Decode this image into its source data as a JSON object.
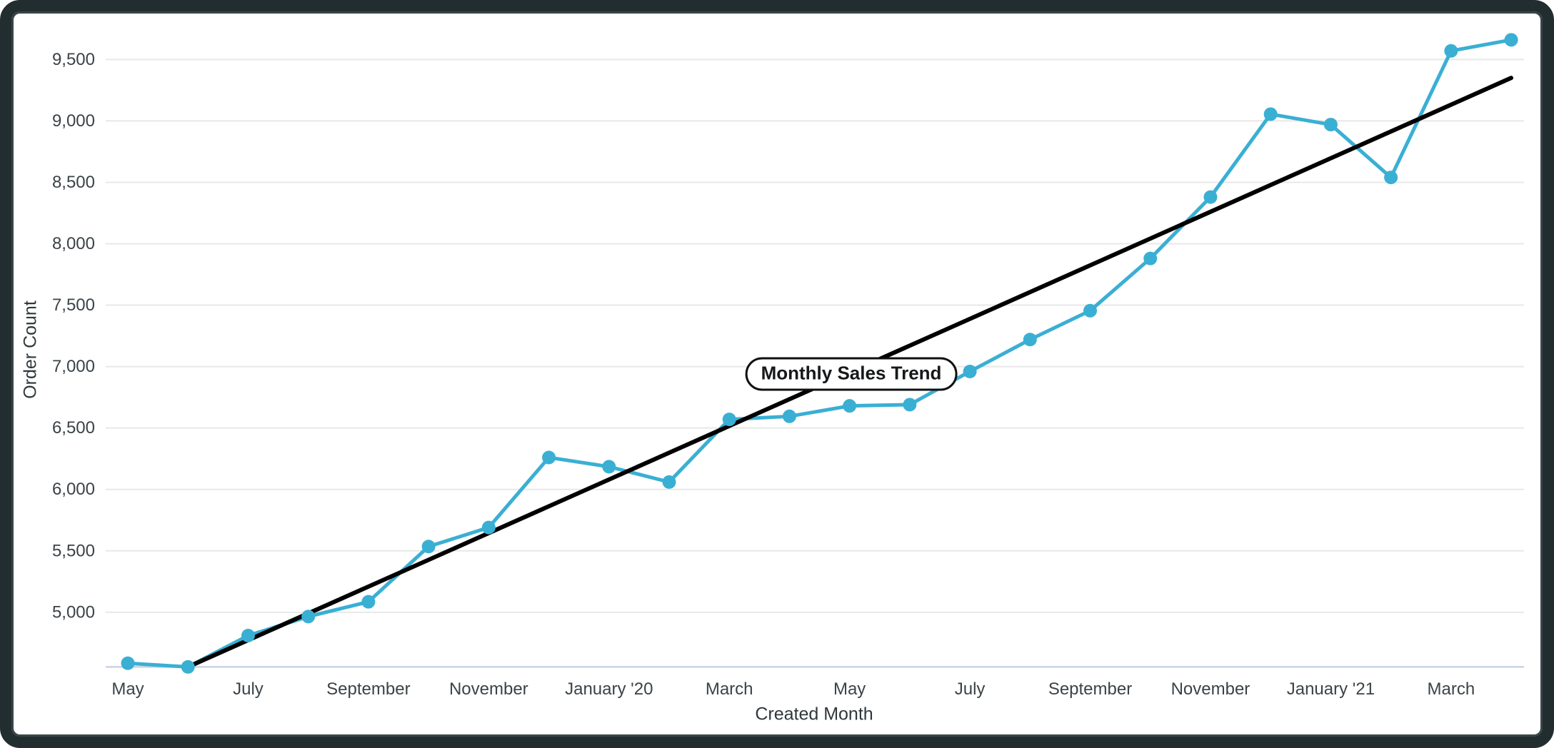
{
  "window": {
    "frame_color": "#222D30",
    "background_color": "#ffffff"
  },
  "chart_data": {
    "type": "line",
    "title": "Monthly Sales Trend",
    "xlabel": "Created Month",
    "ylabel": "Order Count",
    "grid": true,
    "legend": "none",
    "x_tick_labels": [
      "May",
      "July",
      "September",
      "November",
      "January '20",
      "March",
      "May",
      "July",
      "September",
      "November",
      "January '21",
      "March"
    ],
    "x_tick_indices": [
      0,
      2,
      4,
      6,
      8,
      10,
      12,
      14,
      16,
      18,
      20,
      22
    ],
    "y_tick_labels": [
      "5,000",
      "5,500",
      "6,000",
      "6,500",
      "7,000",
      "7,500",
      "8,000",
      "8,500",
      "9,000",
      "9,500"
    ],
    "ylim": [
      4555,
      9810
    ],
    "series": [
      {
        "name": "Order Count",
        "color": "#3AAFD4",
        "marker": "circle",
        "values": [
          4585,
          4555,
          4810,
          4965,
          5085,
          5535,
          5690,
          6260,
          6185,
          6060,
          6570,
          6595,
          6680,
          6690,
          6960,
          7220,
          7455,
          7880,
          8380,
          9055,
          8970,
          8540,
          9570,
          9660
        ]
      }
    ],
    "trend_line": {
      "name": "trend",
      "color": "#000000",
      "start_index": 1,
      "start_value": 4555,
      "end_index": 23,
      "end_value": 9350
    },
    "colors": {
      "gridline": "#E8E8E8",
      "baseline": "#C9D2E4",
      "tick_text": "#3B4347"
    }
  }
}
